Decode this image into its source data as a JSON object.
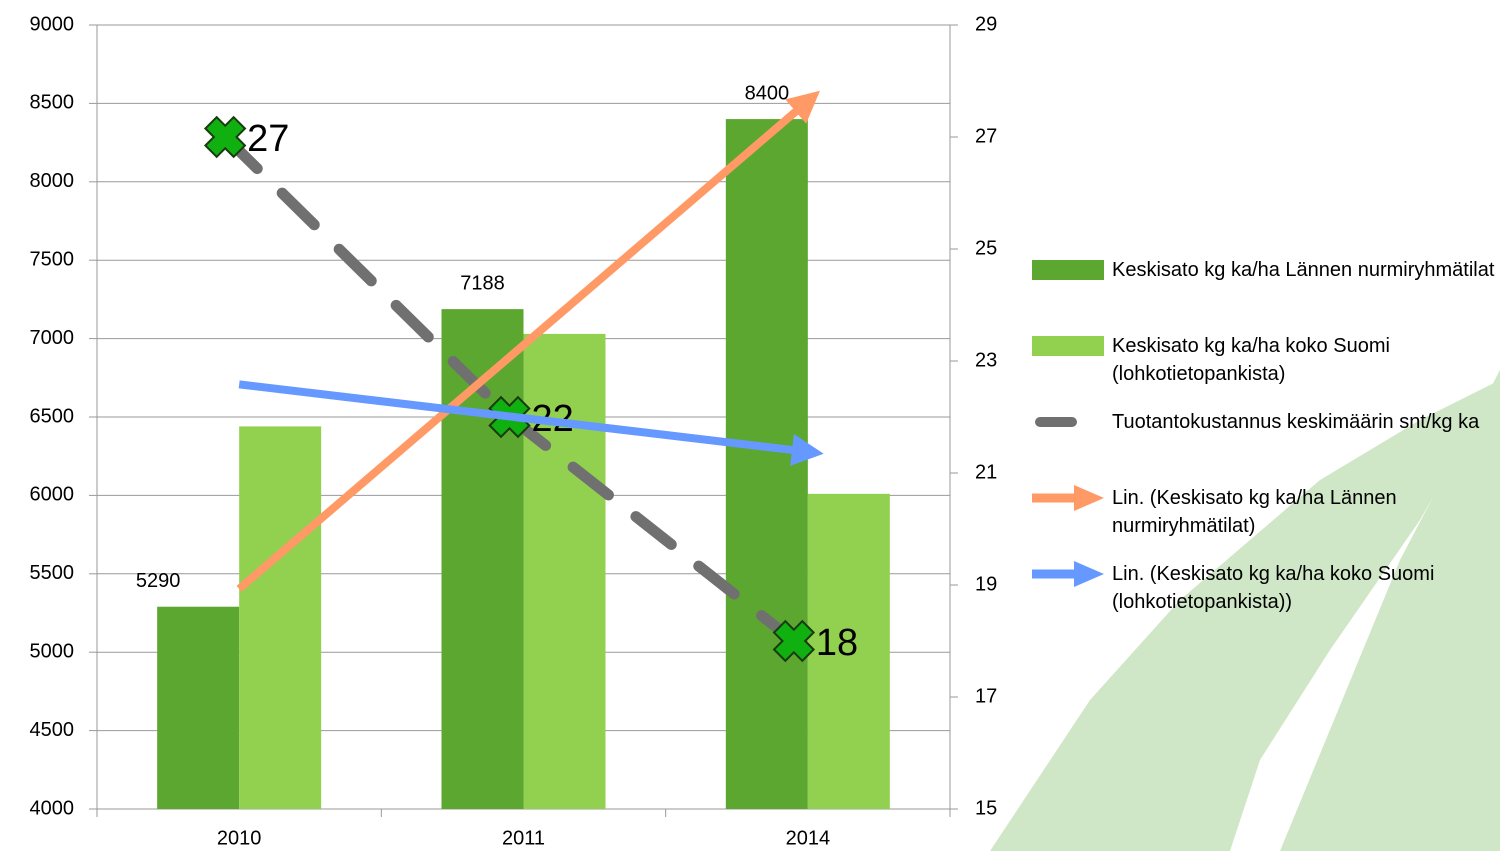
{
  "chart_data": {
    "type": "bar-line",
    "categories": [
      "2010",
      "2011",
      "2014"
    ],
    "series": [
      {
        "name": "Keskisato kg ka/ha  Lännen nurmiryhmätilat",
        "type": "bar",
        "color": "#5ca730",
        "values": [
          5290,
          7188,
          8400
        ]
      },
      {
        "name": "Keskisato kg ka/ha koko Suomi (lohkotietopankista)",
        "type": "bar",
        "color": "#92d050",
        "values": [
          6440,
          7030,
          6010
        ]
      },
      {
        "name": "Tuotantokustannus keskimäärin snt/kg ka",
        "type": "dashed",
        "axis": "y2",
        "color": "#707070",
        "marker_color": "#10b010",
        "values": [
          27,
          22,
          18
        ]
      },
      {
        "name": "Lin. (Keskisato kg ka/ha  Lännen nurmiryhmätilat)",
        "type": "trend",
        "color": "#ff9966",
        "values": [
          5404,
          6959,
          8514
        ]
      },
      {
        "name": "Lin. (Keskisato kg ka/ha koko Suomi (lohkotietopankista))",
        "type": "trend",
        "color": "#6699ff",
        "values": [
          6708,
          6493,
          6278
        ]
      }
    ],
    "ylim": [
      4000,
      9000
    ],
    "yticks": [
      4000,
      4500,
      5000,
      5500,
      6000,
      6500,
      7000,
      7500,
      8000,
      8500,
      9000
    ],
    "y2lim": [
      15,
      29
    ],
    "y2ticks": [
      15,
      17,
      19,
      21,
      23,
      25,
      27,
      29
    ],
    "grid": true
  }
}
